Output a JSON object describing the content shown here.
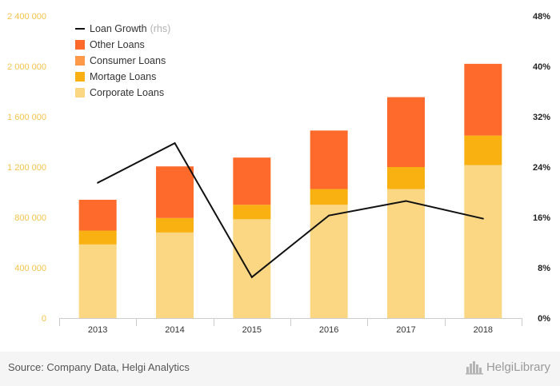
{
  "chart_data": {
    "type": "bar",
    "categories": [
      "2013",
      "2014",
      "2015",
      "2016",
      "2017",
      "2018"
    ],
    "series": [
      {
        "name": "Corporate Loans",
        "values": [
          585000,
          680000,
          785000,
          900000,
          1025000,
          1215000
        ],
        "color": "#fcd783"
      },
      {
        "name": "Mortage Loans",
        "values": [
          110000,
          115000,
          115000,
          125000,
          175000,
          235000
        ],
        "color": "#f8b111"
      },
      {
        "name": "Consumer Loans",
        "values": [
          0,
          0,
          0,
          0,
          0,
          0
        ],
        "color": "#fd9a4a"
      },
      {
        "name": "Other Loans",
        "values": [
          245000,
          410000,
          375000,
          465000,
          555000,
          570000
        ],
        "color": "#fd6a2c"
      }
    ],
    "line_series": {
      "name": "Loan Growth",
      "suffix": "(rhs)",
      "values": [
        21.5,
        27.8,
        6.5,
        16.3,
        18.6,
        15.8
      ],
      "color": "#111111"
    },
    "y_left": {
      "ticks": [
        "0",
        "400 000",
        "800 000",
        "1 200 000",
        "1 600 000",
        "2 000 000",
        "2 400 000"
      ],
      "ylim": [
        0,
        2400000
      ],
      "tick_color": "#f5c34b"
    },
    "y_right": {
      "ticks": [
        "0%",
        "8%",
        "16%",
        "24%",
        "32%",
        "40%",
        "48%"
      ],
      "ylim": [
        0,
        48
      ]
    },
    "legend": {
      "placement": "top-left",
      "order": [
        "Loan Growth",
        "Other Loans",
        "Consumer Loans",
        "Mortage Loans",
        "Corporate Loans"
      ]
    },
    "grid": false
  },
  "footer": {
    "source": "Source: Company Data, Helgi Analytics",
    "logo_text": "HelgiLibrary",
    "logo_icon": "city-skyline-icon"
  }
}
